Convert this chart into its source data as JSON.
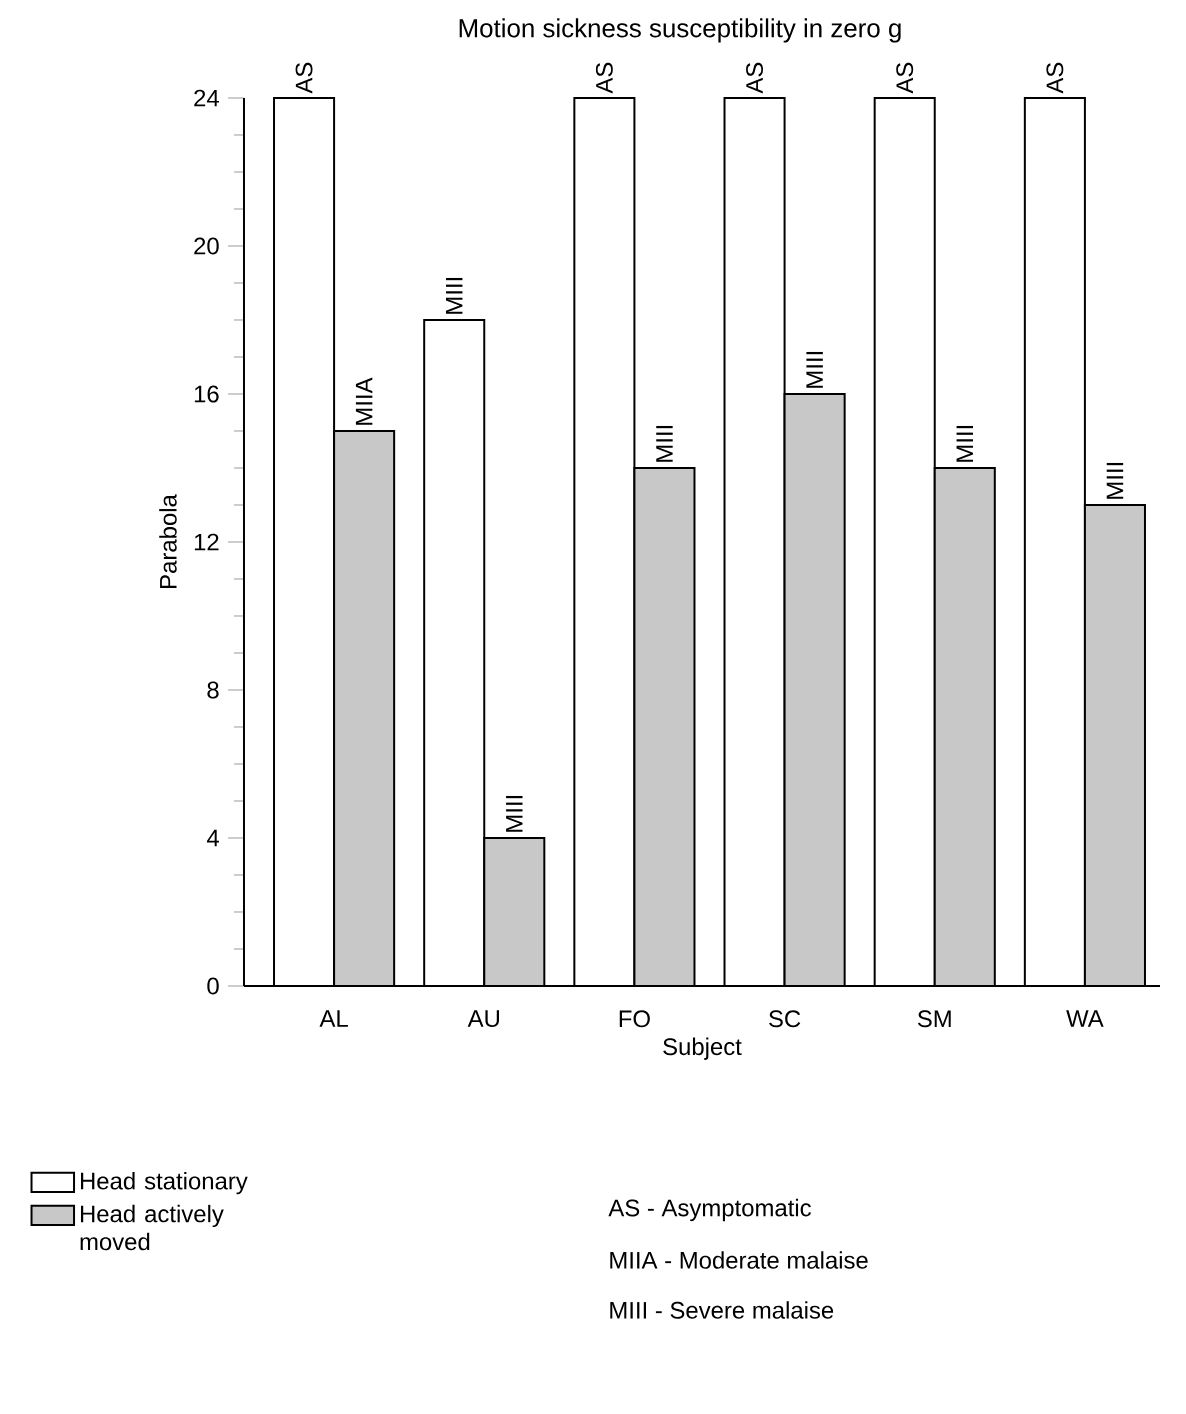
{
  "chart_data": {
    "type": "bar",
    "title": "Motion sickness susceptibility in zero g",
    "xlabel": "Subject",
    "ylabel": "Parabola",
    "categories": [
      "AL",
      "AU",
      "FO",
      "SC",
      "SM",
      "WA"
    ],
    "series": [
      {
        "name": "Head stationary",
        "color": "#ffffff",
        "values": [
          24,
          18,
          24,
          24,
          24,
          24
        ],
        "value_labels": [
          "AS",
          "MIII",
          "AS",
          "AS",
          "AS",
          "AS"
        ]
      },
      {
        "name": "Head actively moved",
        "color": "#c8c8c8",
        "values": [
          15,
          4,
          14,
          16,
          14,
          13
        ],
        "value_labels": [
          "MIIA",
          "MIII",
          "MIII",
          "MIII",
          "MIII",
          "MIII"
        ]
      }
    ],
    "ylim": [
      0,
      24
    ],
    "yticks": [
      0,
      4,
      8,
      12,
      16,
      20,
      24
    ],
    "legend": "bottom",
    "grid": false,
    "annotations": [
      "AS - Asymptomatic",
      "MIIA - Moderate malaise",
      "MIII - Severe malaise"
    ]
  }
}
